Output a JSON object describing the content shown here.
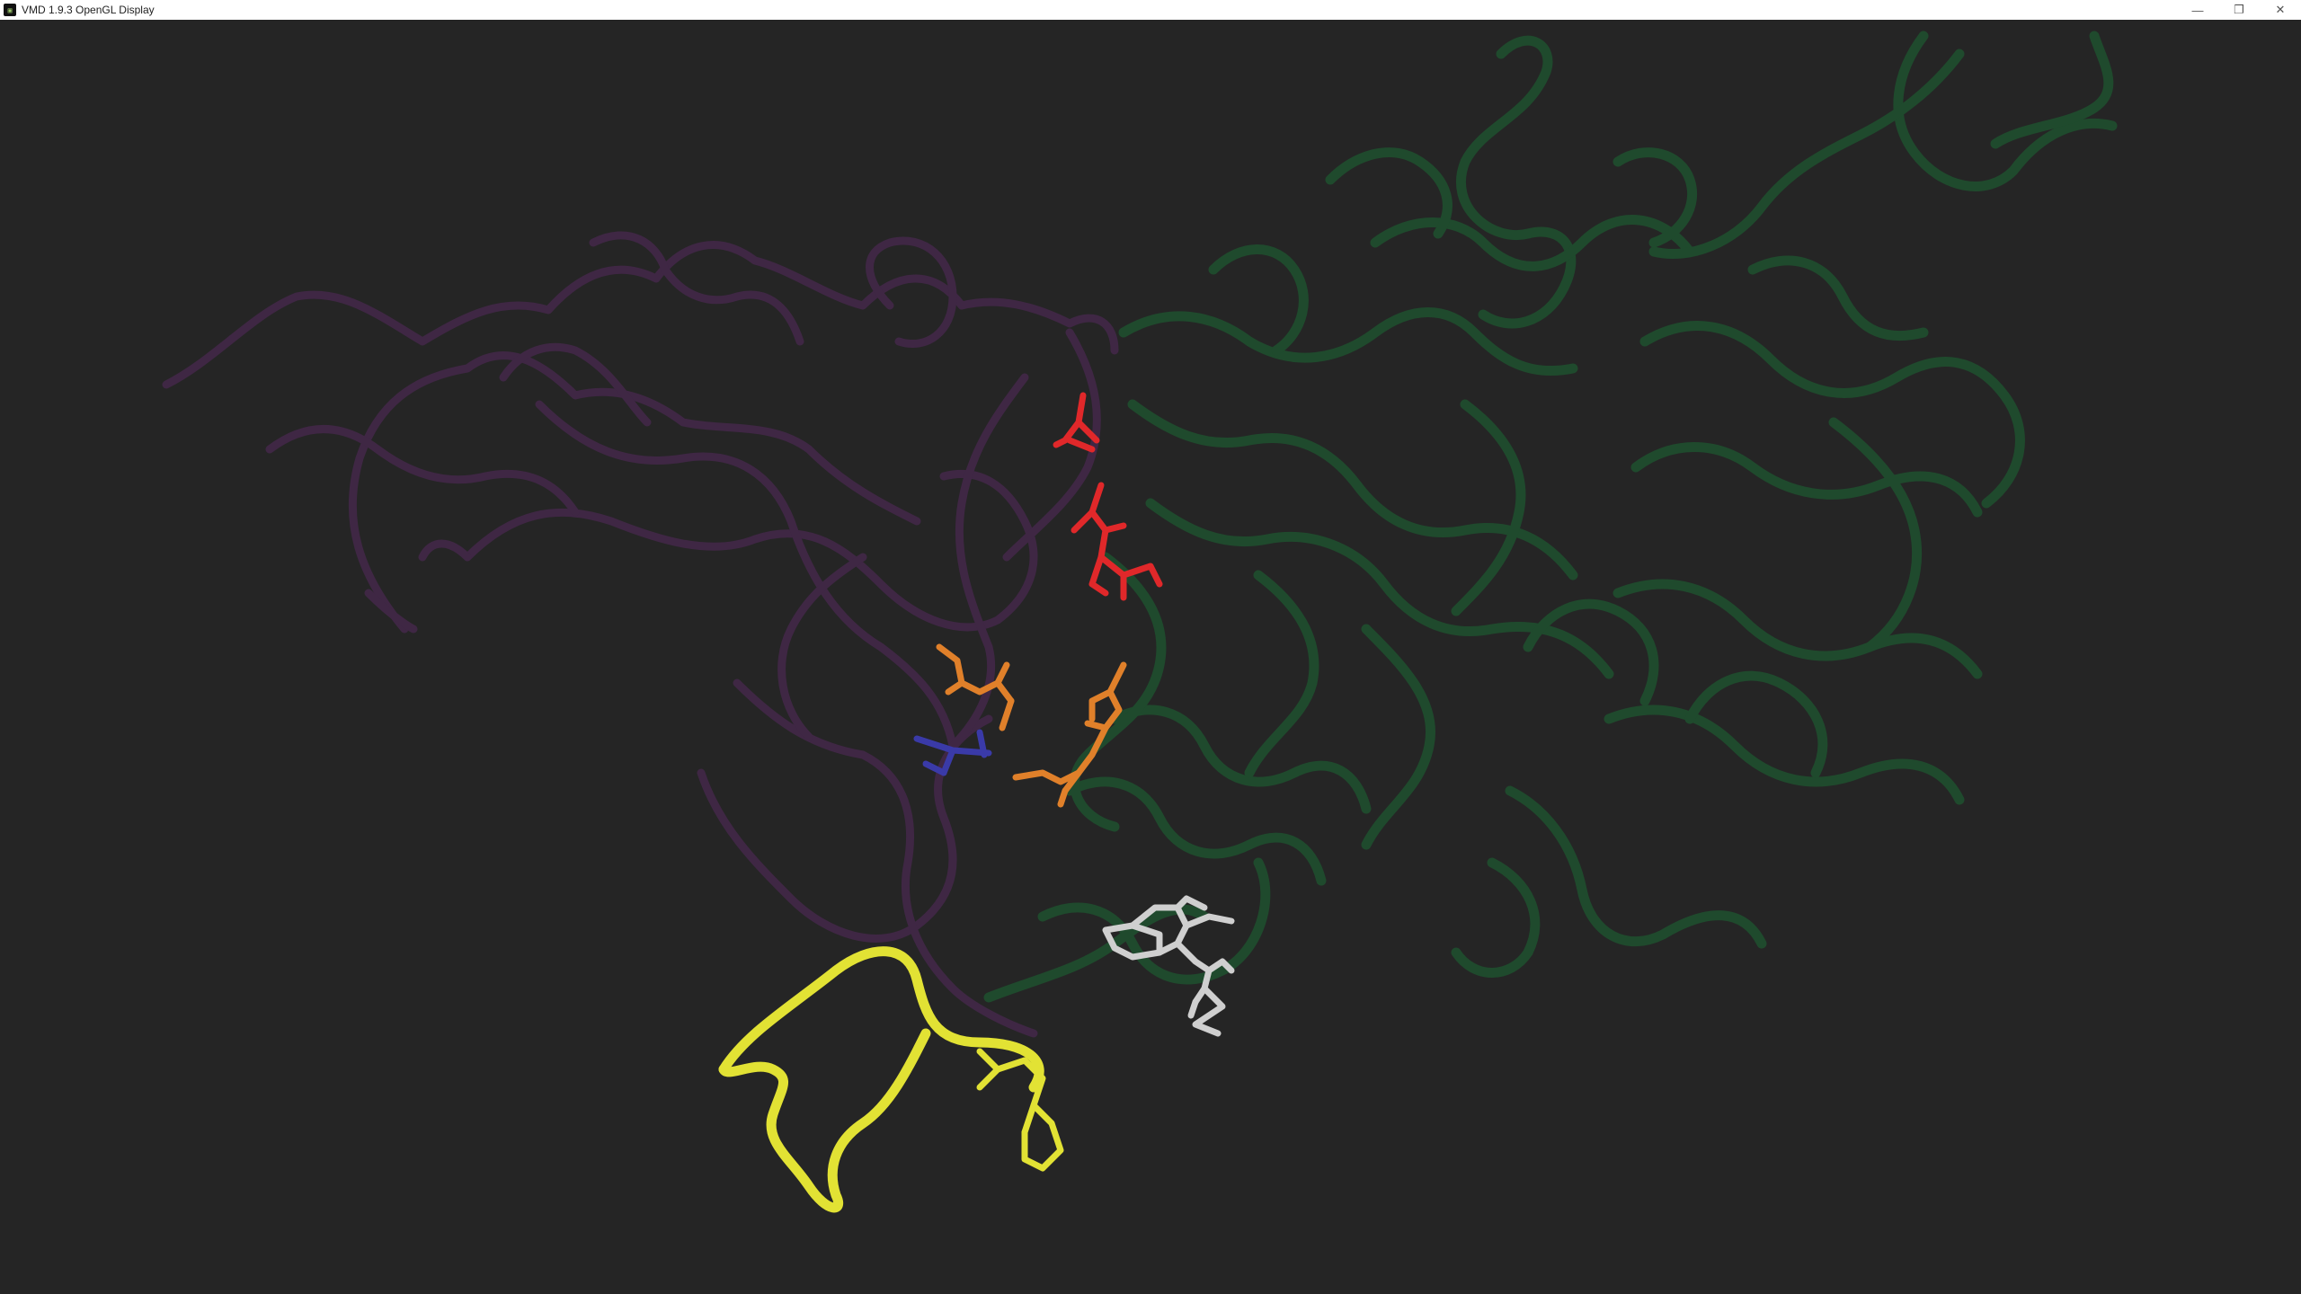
{
  "window": {
    "title": "VMD 1.9.3 OpenGL Display",
    "icon": "vmd-app-icon",
    "controls": {
      "minimize": "minimize-icon",
      "maximize": "restore-icon",
      "close": "close-icon"
    }
  },
  "scene": {
    "background": "#252525",
    "chain_a_color": "#3f2744",
    "chain_b_color": "#1f4a2d",
    "loop_color": "#e2e234",
    "residue_colors": {
      "red": "#e0282a",
      "orange": "#e0802a",
      "blue": "#3a3aa8",
      "white": "#cfcfcf"
    }
  }
}
